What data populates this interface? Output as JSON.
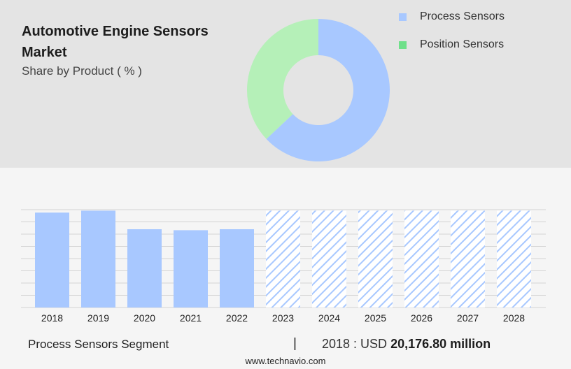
{
  "header": {
    "title": "Automotive Engine Sensors Market",
    "subtitle": "Share by Product ( % )"
  },
  "chart_data": [
    {
      "type": "pie",
      "donut": true,
      "labels": [
        "Process Sensors",
        "Position Sensors"
      ],
      "values": [
        63,
        37
      ],
      "colors": [
        "#a8c8ff",
        "#b5f0b8"
      ],
      "legend_colors": [
        "#a8c8ff",
        "#6fe08a"
      ],
      "legend": "right"
    },
    {
      "type": "bar",
      "categories": [
        "2018",
        "2019",
        "2020",
        "2021",
        "2022",
        "2023",
        "2024",
        "2025",
        "2026",
        "2027",
        "2028"
      ],
      "values": [
        97,
        99,
        80,
        79,
        80,
        99,
        99,
        99,
        99,
        99,
        99
      ],
      "forecast_from": "2023",
      "bar_color": "#a8c8ff",
      "grid": true,
      "ylim": [
        0,
        100
      ]
    }
  ],
  "footer": {
    "segment": "Process Sensors Segment",
    "separator": "|",
    "year_label": "2018 : USD",
    "value": "20,176.80 million",
    "website": "www.technavio.com"
  }
}
